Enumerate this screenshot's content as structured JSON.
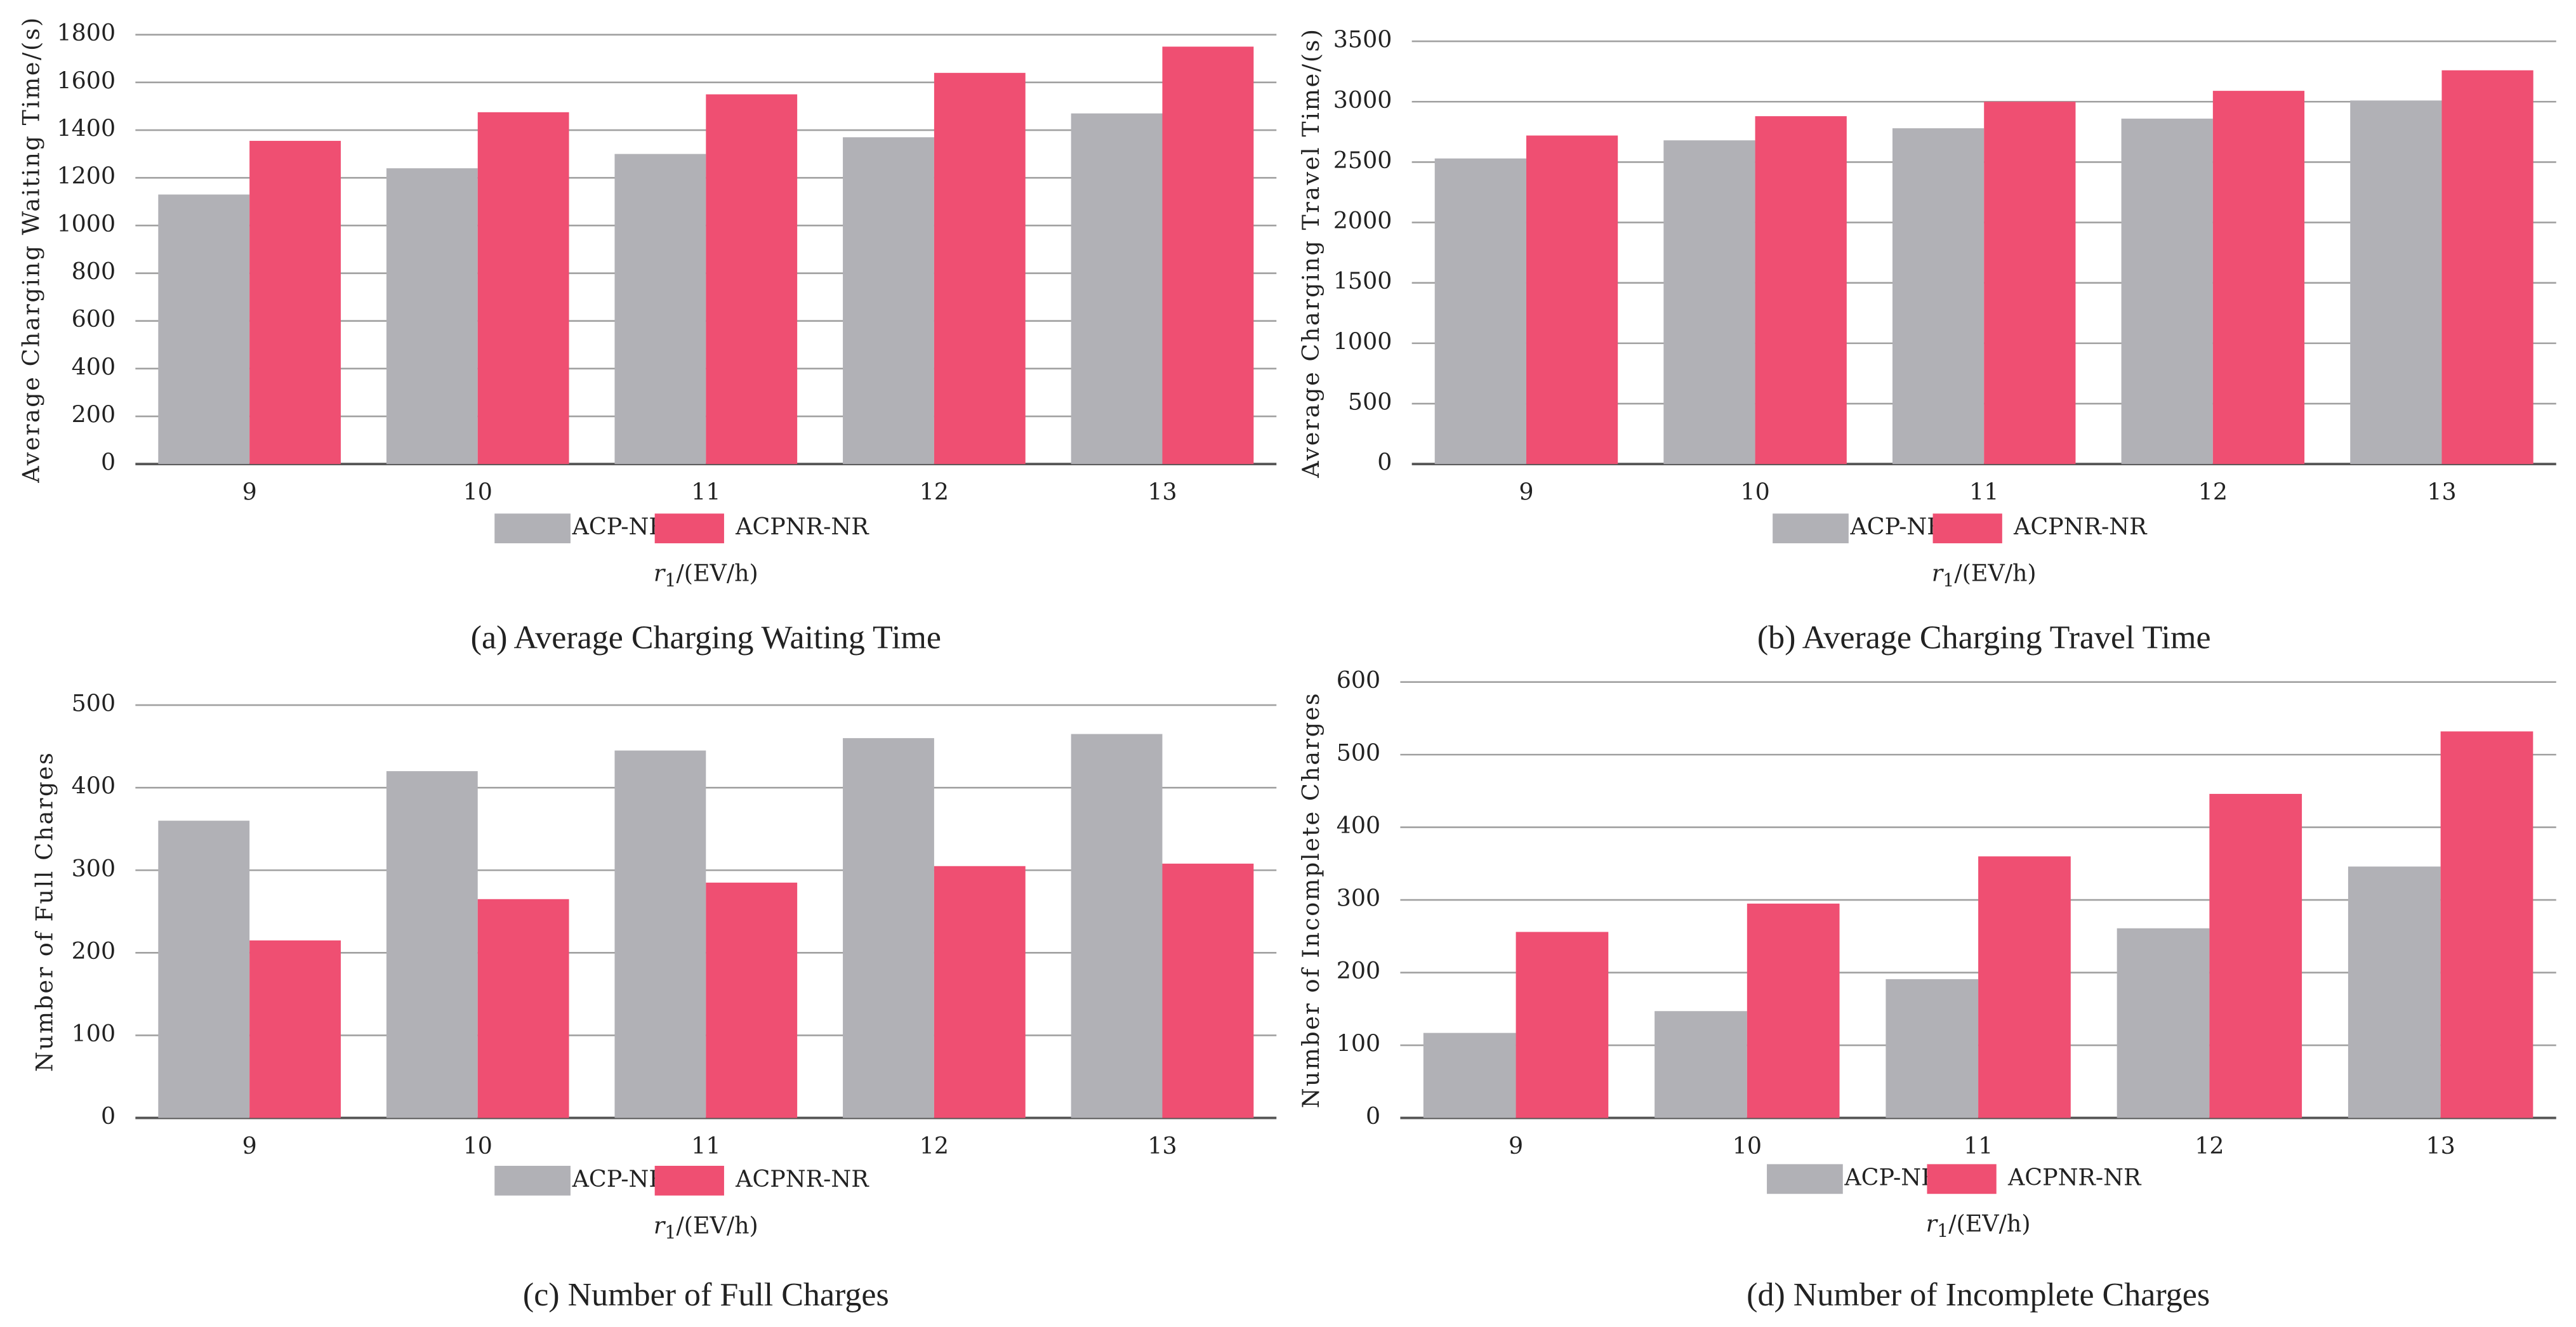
{
  "chart_data": [
    {
      "type": "bar",
      "title": "(a) Average Charging Waiting Time",
      "y_label": "Average Charging Waiting Time/(s)",
      "x_label_symbol": "r",
      "x_label_subscript": "1",
      "x_label_rest": "/(EV/h)",
      "categories": [
        "9",
        "10",
        "11",
        "12",
        "13"
      ],
      "series": [
        {
          "name": "ACP-NR",
          "color": "#b1b1b6",
          "values": [
            1130,
            1240,
            1300,
            1370,
            1470
          ]
        },
        {
          "name": "ACPNR-NR",
          "color": "#ef4f72",
          "values": [
            1355,
            1475,
            1550,
            1640,
            1750
          ]
        }
      ],
      "ylim": [
        0,
        1800
      ],
      "yticks": [
        0,
        200,
        400,
        600,
        800,
        1000,
        1200,
        1400,
        1600,
        1800
      ],
      "grid": true
    },
    {
      "type": "bar",
      "title": "(b) Average Charging Travel Time",
      "y_label": "Average Charging Travel Time/(s)",
      "x_label_symbol": "r",
      "x_label_subscript": "1",
      "x_label_rest": "/(EV/h)",
      "categories": [
        "9",
        "10",
        "11",
        "12",
        "13"
      ],
      "series": [
        {
          "name": "ACP-NR",
          "color": "#b1b1b6",
          "values": [
            2530,
            2680,
            2780,
            2860,
            3010
          ]
        },
        {
          "name": "ACPNR-NR",
          "color": "#ef4f72",
          "values": [
            2720,
            2880,
            3000,
            3090,
            3260
          ]
        }
      ],
      "ylim": [
        0,
        3500
      ],
      "yticks": [
        0,
        500,
        1000,
        1500,
        2000,
        2500,
        3000,
        3500
      ],
      "grid": true
    },
    {
      "type": "bar",
      "title": "(c) Number of Full Charges",
      "y_label": "Number of Full Charges",
      "x_label_symbol": "r",
      "x_label_subscript": "1",
      "x_label_rest": "/(EV/h)",
      "categories": [
        "9",
        "10",
        "11",
        "12",
        "13"
      ],
      "series": [
        {
          "name": "ACP-NR",
          "color": "#b1b1b6",
          "values": [
            360,
            420,
            445,
            460,
            465
          ]
        },
        {
          "name": "ACPNR-NR",
          "color": "#ef4f72",
          "values": [
            215,
            265,
            285,
            305,
            308
          ]
        }
      ],
      "ylim": [
        0,
        500
      ],
      "yticks": [
        0,
        100,
        200,
        300,
        400,
        500
      ],
      "grid": true
    },
    {
      "type": "bar",
      "title": "(d) Number of Incomplete Charges",
      "y_label": "Number of Incomplete Charges",
      "x_label_symbol": "r",
      "x_label_subscript": "1",
      "x_label_rest": "/(EV/h)",
      "categories": [
        "9",
        "10",
        "11",
        "12",
        "13"
      ],
      "series": [
        {
          "name": "ACP-NR",
          "color": "#b1b1b6",
          "values": [
            117,
            147,
            191,
            261,
            346
          ]
        },
        {
          "name": "ACPNR-NR",
          "color": "#ef4f72",
          "values": [
            256,
            295,
            360,
            446,
            532
          ]
        }
      ],
      "ylim": [
        0,
        600
      ],
      "yticks": [
        0,
        100,
        200,
        300,
        400,
        500,
        600
      ],
      "grid": true
    }
  ]
}
